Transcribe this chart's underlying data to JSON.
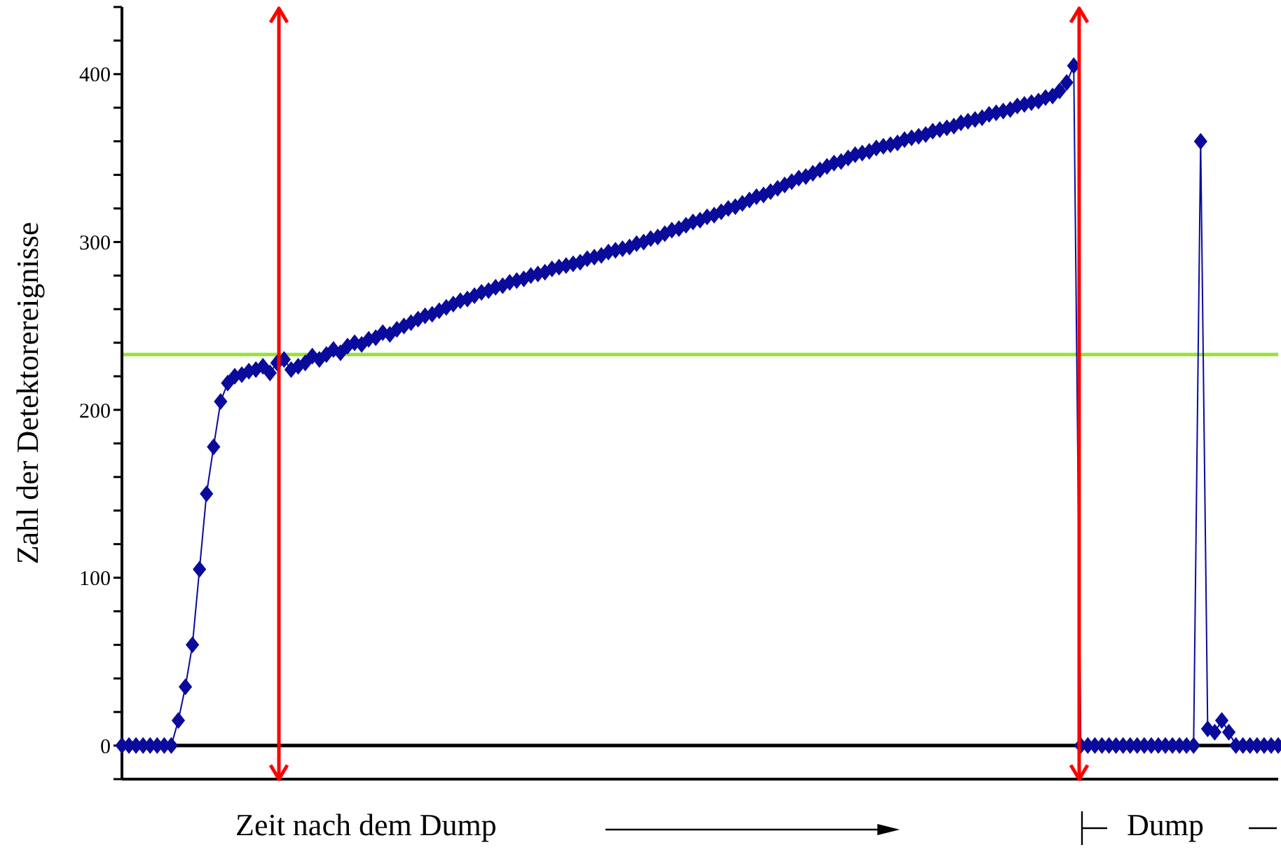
{
  "chart_data": {
    "type": "line",
    "xlabel": "Zeit nach dem Dump",
    "ylabel": "Zahl der Detektorereignisse",
    "annotations": [
      "Dump"
    ],
    "categories": [
      null,
      null,
      null,
      null,
      null,
      null,
      null,
      null,
      null,
      null,
      null,
      null,
      null,
      null,
      null,
      null,
      null,
      null,
      null,
      null,
      null,
      null,
      null,
      null,
      null,
      null,
      null,
      null,
      null,
      null,
      null,
      null,
      null,
      null,
      null,
      null,
      null,
      null,
      null,
      null,
      null,
      null,
      null,
      null,
      null,
      null,
      null,
      null,
      null,
      null,
      null,
      null,
      null,
      null,
      null,
      null,
      null,
      null,
      null,
      null,
      null,
      null,
      null,
      null,
      null,
      null,
      null,
      null,
      null,
      null,
      null,
      null,
      null,
      null,
      null,
      null,
      null,
      null,
      null,
      null,
      null,
      null,
      null,
      null,
      null,
      null,
      null,
      null,
      null,
      null,
      null,
      null,
      null,
      null,
      null,
      null,
      null,
      null,
      null,
      null,
      null,
      null,
      null,
      null,
      null,
      null,
      null,
      null,
      null,
      null,
      null,
      null,
      null,
      null,
      null,
      null,
      null,
      null,
      null,
      null,
      null,
      null,
      null,
      null,
      null,
      null,
      null,
      null,
      null,
      null,
      null,
      null,
      null,
      null,
      null,
      null,
      null,
      null,
      null,
      null,
      null,
      null,
      null,
      null,
      null,
      null,
      null,
      null,
      null,
      null,
      null,
      null,
      null,
      null,
      null,
      null,
      null,
      null,
      null,
      null,
      null,
      null,
      null,
      null,
      null
    ],
    "ylim": [
      -20,
      440
    ],
    "yticks": [
      {
        "value": -20,
        "label": null
      },
      0,
      {
        "value": 20,
        "label": null
      },
      {
        "value": 40,
        "label": null
      },
      {
        "value": 60,
        "label": null
      },
      {
        "value": 80,
        "label": null
      },
      100,
      {
        "value": 120,
        "label": null
      },
      {
        "value": 140,
        "label": null
      },
      {
        "value": 160,
        "label": null
      },
      {
        "value": 180,
        "label": null
      },
      200,
      {
        "value": 220,
        "label": null
      },
      {
        "value": 240,
        "label": null
      },
      {
        "value": 260,
        "label": null
      },
      {
        "value": 280,
        "label": null
      },
      300,
      {
        "value": 320,
        "label": null
      },
      {
        "value": 340,
        "label": null
      },
      {
        "value": 360,
        "label": null
      },
      {
        "value": 380,
        "label": null
      },
      400,
      {
        "value": 420,
        "label": null
      },
      {
        "value": 440,
        "label": null
      }
    ],
    "tick_labels": "y",
    "marker": "diamond",
    "line_style": "solid",
    "ref_lines": [
      {
        "axis": "y",
        "value": 0,
        "color": "#000000"
      },
      {
        "axis": "y",
        "value": 233,
        "color": "#99e03a"
      }
    ],
    "series": [
      {
        "color": "#0a0a9c",
        "values": [
          0,
          0,
          0,
          0,
          0,
          0,
          0,
          0,
          15,
          35,
          60,
          105,
          150,
          178,
          205,
          216,
          220,
          221,
          223,
          224,
          226,
          222,
          228,
          230,
          224,
          226,
          228,
          232,
          230,
          233,
          236,
          234,
          238,
          240,
          239,
          242,
          243,
          246,
          245,
          248,
          250,
          252,
          254,
          256,
          257,
          259,
          261,
          263,
          265,
          266,
          268,
          270,
          271,
          273,
          274,
          276,
          277,
          278,
          280,
          281,
          282,
          284,
          285,
          286,
          287,
          288,
          290,
          291,
          292,
          294,
          295,
          296,
          297,
          299,
          300,
          302,
          303,
          305,
          307,
          308,
          310,
          312,
          313,
          315,
          316,
          318,
          320,
          321,
          323,
          325,
          327,
          328,
          330,
          332,
          334,
          336,
          338,
          339,
          341,
          343,
          345,
          347,
          348,
          350,
          352,
          353,
          354,
          356,
          357,
          358,
          359,
          361,
          362,
          363,
          364,
          366,
          367,
          368,
          369,
          371,
          372,
          373,
          374,
          376,
          377,
          378,
          379,
          381,
          382,
          383,
          384,
          386,
          387,
          390,
          395,
          405,
          0,
          0,
          0,
          0,
          0,
          0,
          0,
          0,
          0,
          0,
          0,
          0,
          0,
          0,
          0,
          0,
          0,
          360,
          10,
          8,
          15,
          8,
          0,
          0,
          0,
          0,
          0,
          0,
          0
        ]
      }
    ]
  }
}
